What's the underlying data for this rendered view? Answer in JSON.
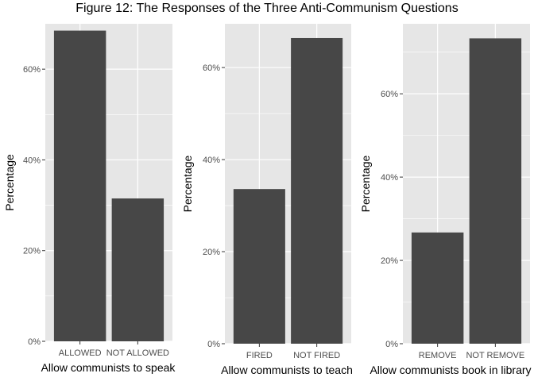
{
  "figure_title": "Figure 12: The Responses of the Three Anti-Communism Questions",
  "colors": {
    "panel_bg": "#e6e6e6",
    "grid": "#ffffff",
    "bar": "#474747",
    "tick_text": "#4d4d4d",
    "axis_text": "#000000"
  },
  "chart_data": [
    {
      "type": "bar",
      "title": "",
      "categories": [
        "ALLOWED",
        "NOT ALLOWED"
      ],
      "values": [
        68.5,
        31.5
      ],
      "xlabel": "Allow communists to speak",
      "ylabel": "Percentage",
      "ylim": [
        0,
        70
      ],
      "yticks": [
        0,
        20,
        40,
        60
      ],
      "ytick_labels": [
        "0%",
        "20%",
        "40%",
        "60%"
      ],
      "grid": true,
      "legend": "none"
    },
    {
      "type": "bar",
      "title": "",
      "categories": [
        "FIRED",
        "NOT FIRED"
      ],
      "values": [
        33.6,
        66.4
      ],
      "xlabel": "Allow communists to teach",
      "ylabel": "Percentage",
      "ylim": [
        0,
        69.5
      ],
      "yticks": [
        0,
        20,
        40,
        60
      ],
      "ytick_labels": [
        "0%",
        "20%",
        "40%",
        "60%"
      ],
      "grid": true,
      "legend": "none"
    },
    {
      "type": "bar",
      "title": "",
      "categories": [
        "REMOVE",
        "NOT REMOVE"
      ],
      "values": [
        26.7,
        73.3
      ],
      "xlabel": "Allow communists  book in library",
      "ylabel": "Percentage",
      "ylim": [
        0,
        76.8
      ],
      "yticks": [
        0,
        20,
        40,
        60
      ],
      "ytick_labels": [
        "0%",
        "20%",
        "40%",
        "60%"
      ],
      "grid": true,
      "legend": "none"
    }
  ]
}
